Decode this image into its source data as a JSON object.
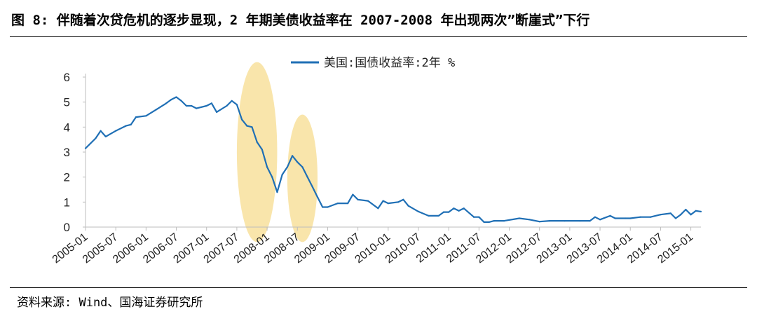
{
  "title": "图 8: 伴随着次贷危机的逐步显现，2 年期美债收益率在 2007-2008 年出现两次”断崖式”下行",
  "source": "资料来源: Wind、国海证券研究所",
  "colors": {
    "line": "#1f6fb5",
    "highlight": "#f7dc8f"
  },
  "chart_data": {
    "type": "line",
    "title": "",
    "xlabel": "",
    "ylabel": "",
    "ylim": [
      0,
      6
    ],
    "yticks": [
      "0",
      "1",
      "2",
      "3",
      "4",
      "5",
      "6"
    ],
    "xticks": [
      "2005-01",
      "2005-07",
      "2006-01",
      "2006-07",
      "2007-01",
      "2007-07",
      "2008-01",
      "2008-07",
      "2009-01",
      "2009-07",
      "2010-01",
      "2010-07",
      "2011-01",
      "2011-07",
      "2012-01",
      "2012-07",
      "2013-01",
      "2013-07",
      "2014-01",
      "2014-07",
      "2015-01"
    ],
    "xrange": [
      "2005-01",
      "2015-03"
    ],
    "grid": false,
    "legend_position": "top-center",
    "series": [
      {
        "name": "美国:国债收益率:2年  %",
        "points": [
          [
            "2005-01",
            3.15
          ],
          [
            "2005-03",
            3.55
          ],
          [
            "2005-04",
            3.85
          ],
          [
            "2005-05",
            3.62
          ],
          [
            "2005-07",
            3.85
          ],
          [
            "2005-09",
            4.05
          ],
          [
            "2005-10",
            4.1
          ],
          [
            "2005-11",
            4.4
          ],
          [
            "2006-01",
            4.45
          ],
          [
            "2006-03",
            4.7
          ],
          [
            "2006-05",
            4.95
          ],
          [
            "2006-06",
            5.1
          ],
          [
            "2006-07",
            5.2
          ],
          [
            "2006-08",
            5.05
          ],
          [
            "2006-09",
            4.85
          ],
          [
            "2006-10",
            4.85
          ],
          [
            "2006-11",
            4.75
          ],
          [
            "2007-01",
            4.85
          ],
          [
            "2007-02",
            4.95
          ],
          [
            "2007-03",
            4.6
          ],
          [
            "2007-05",
            4.85
          ],
          [
            "2007-06",
            5.05
          ],
          [
            "2007-07",
            4.9
          ],
          [
            "2007-08",
            4.3
          ],
          [
            "2007-09",
            4.05
          ],
          [
            "2007-10",
            4.0
          ],
          [
            "2007-11",
            3.4
          ],
          [
            "2007-12",
            3.1
          ],
          [
            "2008-01",
            2.4
          ],
          [
            "2008-02",
            2.0
          ],
          [
            "2008-03",
            1.4
          ],
          [
            "2008-04",
            2.1
          ],
          [
            "2008-05",
            2.4
          ],
          [
            "2008-06",
            2.85
          ],
          [
            "2008-07",
            2.6
          ],
          [
            "2008-08",
            2.4
          ],
          [
            "2008-09",
            2.0
          ],
          [
            "2008-10",
            1.6
          ],
          [
            "2008-11",
            1.2
          ],
          [
            "2008-12",
            0.8
          ],
          [
            "2009-01",
            0.8
          ],
          [
            "2009-03",
            0.95
          ],
          [
            "2009-05",
            0.95
          ],
          [
            "2009-06",
            1.3
          ],
          [
            "2009-07",
            1.1
          ],
          [
            "2009-09",
            1.05
          ],
          [
            "2009-11",
            0.75
          ],
          [
            "2009-12",
            1.05
          ],
          [
            "2010-01",
            0.95
          ],
          [
            "2010-03",
            1.0
          ],
          [
            "2010-04",
            1.1
          ],
          [
            "2010-05",
            0.85
          ],
          [
            "2010-07",
            0.62
          ],
          [
            "2010-09",
            0.45
          ],
          [
            "2010-11",
            0.45
          ],
          [
            "2010-12",
            0.6
          ],
          [
            "2011-01",
            0.6
          ],
          [
            "2011-02",
            0.75
          ],
          [
            "2011-03",
            0.65
          ],
          [
            "2011-04",
            0.75
          ],
          [
            "2011-06",
            0.4
          ],
          [
            "2011-07",
            0.4
          ],
          [
            "2011-08",
            0.2
          ],
          [
            "2011-09",
            0.2
          ],
          [
            "2011-10",
            0.25
          ],
          [
            "2011-12",
            0.25
          ],
          [
            "2012-03",
            0.35
          ],
          [
            "2012-05",
            0.3
          ],
          [
            "2012-07",
            0.22
          ],
          [
            "2012-09",
            0.25
          ],
          [
            "2012-12",
            0.25
          ],
          [
            "2013-03",
            0.25
          ],
          [
            "2013-05",
            0.25
          ],
          [
            "2013-06",
            0.4
          ],
          [
            "2013-07",
            0.3
          ],
          [
            "2013-09",
            0.45
          ],
          [
            "2013-10",
            0.35
          ],
          [
            "2013-12",
            0.35
          ],
          [
            "2014-01",
            0.35
          ],
          [
            "2014-03",
            0.4
          ],
          [
            "2014-05",
            0.4
          ],
          [
            "2014-07",
            0.5
          ],
          [
            "2014-09",
            0.55
          ],
          [
            "2014-10",
            0.35
          ],
          [
            "2014-11",
            0.5
          ],
          [
            "2014-12",
            0.7
          ],
          [
            "2015-01",
            0.5
          ],
          [
            "2015-02",
            0.65
          ],
          [
            "2015-03",
            0.62
          ]
        ]
      }
    ],
    "highlights": [
      {
        "from": "2007-07",
        "to": "2008-03",
        "ymin": -0.6,
        "ymax": 6.6
      },
      {
        "from": "2008-05",
        "to": "2008-11",
        "ymin": -0.6,
        "ymax": 4.5
      }
    ]
  }
}
